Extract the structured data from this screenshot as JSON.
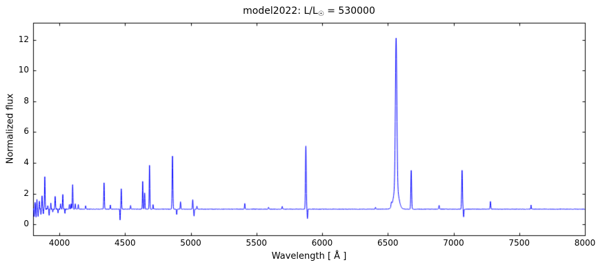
{
  "chart": {
    "title_prefix": "model2022: L/L",
    "title_sub": "☉",
    "title_suffix": " = 530000",
    "xlabel": "Wavelength [ Å ]",
    "ylabel": "Normalized flux"
  },
  "chart_data": {
    "type": "line",
    "title": "model2022: L/L☉ = 530000",
    "xlabel": "Wavelength [ Å ]",
    "ylabel": "Normalized flux",
    "xlim": [
      3800,
      8000
    ],
    "ylim": [
      -0.7,
      13.1
    ],
    "xticks": [
      4000,
      4500,
      5000,
      5500,
      6000,
      6500,
      7000,
      7500,
      8000
    ],
    "yticks": [
      0,
      2,
      4,
      6,
      8,
      10,
      12
    ],
    "grid": false,
    "legend": "none",
    "line_color": "#0000ff",
    "continuum": 1.0,
    "sample_step": 1,
    "noise": {
      "amp": 0.012,
      "amp_blue": 0.045,
      "blue_cutoff": 4050,
      "seed": 7
    },
    "lines": [
      {
        "c": 3808,
        "a": -0.5,
        "s": 1.8
      },
      {
        "c": 3815,
        "a": 0.45,
        "s": 2.5
      },
      {
        "c": 3822,
        "a": -0.5,
        "s": 2.0
      },
      {
        "c": 3829,
        "a": 0.6,
        "s": 2.0
      },
      {
        "c": 3838,
        "a": -0.45,
        "s": 2.0
      },
      {
        "c": 3848,
        "a": 0.5,
        "s": 2.0
      },
      {
        "c": 3860,
        "a": -0.35,
        "s": 2.0
      },
      {
        "c": 3868,
        "a": 0.85,
        "s": 2.2
      },
      {
        "c": 3878,
        "a": -0.3,
        "s": 2.0
      },
      {
        "c": 3889,
        "a": 2.1,
        "s": 2.4
      },
      {
        "c": 3912,
        "a": 0.25,
        "s": 2.0
      },
      {
        "c": 3922,
        "a": -0.45,
        "s": 2.0
      },
      {
        "c": 3935,
        "a": 0.4,
        "s": 2.0
      },
      {
        "c": 3950,
        "a": -0.2,
        "s": 2.0
      },
      {
        "c": 3968,
        "a": 0.85,
        "s": 2.3
      },
      {
        "c": 3990,
        "a": -0.25,
        "s": 2.0
      },
      {
        "c": 4009,
        "a": 0.3,
        "s": 2.0
      },
      {
        "c": 4026,
        "a": 0.95,
        "s": 2.3
      },
      {
        "c": 4042,
        "a": -0.3,
        "s": 2.0
      },
      {
        "c": 4076,
        "a": 0.3,
        "s": 2.0
      },
      {
        "c": 4089,
        "a": 0.35,
        "s": 2.0
      },
      {
        "c": 4101,
        "a": 1.6,
        "s": 2.4
      },
      {
        "c": 4121,
        "a": 0.35,
        "s": 2.0
      },
      {
        "c": 4144,
        "a": 0.3,
        "s": 2.0
      },
      {
        "c": 4200,
        "a": 0.22,
        "s": 2.0
      },
      {
        "c": 4340,
        "a": 1.7,
        "s": 2.5
      },
      {
        "c": 4388,
        "a": 0.28,
        "s": 2.0
      },
      {
        "c": 4462,
        "a": -0.72,
        "s": 2.0
      },
      {
        "c": 4471,
        "a": 1.32,
        "s": 2.3
      },
      {
        "c": 4542,
        "a": 0.25,
        "s": 2.0
      },
      {
        "c": 4634,
        "a": 1.8,
        "s": 2.2
      },
      {
        "c": 4649,
        "a": 1.05,
        "s": 2.2
      },
      {
        "c": 4686,
        "a": 2.85,
        "s": 2.4
      },
      {
        "c": 4713,
        "a": 0.3,
        "s": 2.0
      },
      {
        "c": 4861,
        "a": 3.45,
        "s": 2.8
      },
      {
        "c": 4893,
        "a": -0.35,
        "s": 2.0
      },
      {
        "c": 4922,
        "a": 0.48,
        "s": 2.2
      },
      {
        "c": 5015,
        "a": 0.62,
        "s": 2.2
      },
      {
        "c": 5025,
        "a": -0.45,
        "s": 2.0
      },
      {
        "c": 5047,
        "a": 0.2,
        "s": 2.0
      },
      {
        "c": 5411,
        "a": 0.38,
        "s": 2.3
      },
      {
        "c": 5592,
        "a": 0.12,
        "s": 2.5
      },
      {
        "c": 5696,
        "a": 0.18,
        "s": 2.5
      },
      {
        "c": 5876,
        "a": 4.1,
        "s": 3.0
      },
      {
        "c": 5888,
        "a": -0.62,
        "s": 2.2
      },
      {
        "c": 6406,
        "a": 0.12,
        "s": 2.5
      },
      {
        "c": 6527,
        "a": 0.25,
        "s": 3.0
      },
      {
        "c": 6563,
        "a": 9.6,
        "s": 5.5
      },
      {
        "c": 6563,
        "a": 1.5,
        "s": 18.0
      },
      {
        "c": 6678,
        "a": 2.52,
        "s": 3.0
      },
      {
        "c": 6890,
        "a": 0.25,
        "s": 2.5
      },
      {
        "c": 7065,
        "a": 2.52,
        "s": 3.0
      },
      {
        "c": 7077,
        "a": -0.5,
        "s": 2.2
      },
      {
        "c": 7281,
        "a": 0.5,
        "s": 2.5
      },
      {
        "c": 7590,
        "a": 0.28,
        "s": 2.0
      }
    ]
  }
}
